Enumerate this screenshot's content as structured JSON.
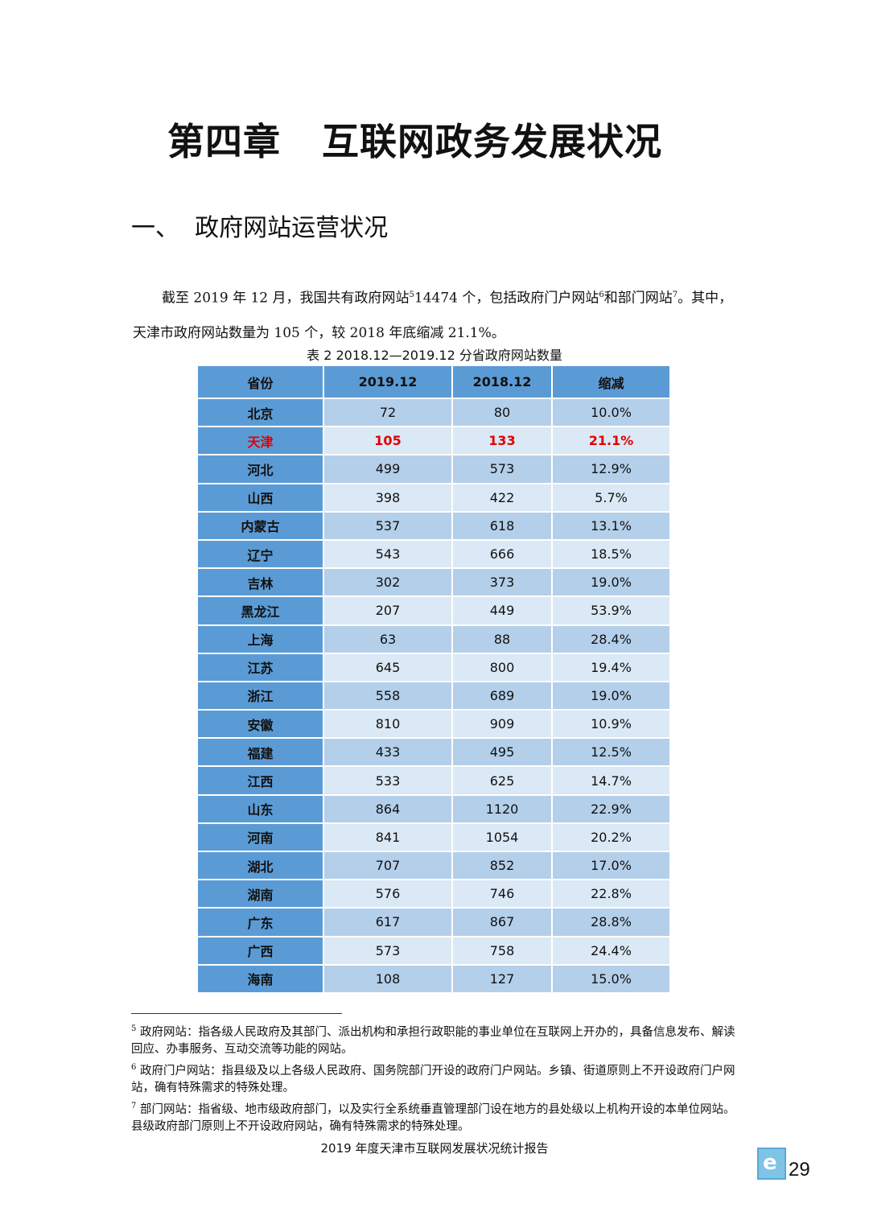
{
  "chapter_title": "第四章   互联网政务发展状况",
  "section_title": "一、  政府网站运营状况",
  "paragraph": {
    "p1": "截至 2019 年 12 月，我国共有政府网站",
    "fn5": "5",
    "p2": "14474 个，包括政府门户网站",
    "fn6": "6",
    "p3": "和部门网站",
    "fn7": "7",
    "p4": "。其中，天津市政府网站数量为 105 个，较 2018 年底缩减 21.1%。"
  },
  "table": {
    "caption": "表  2 2018.12—2019.12 分省政府网站数量",
    "headers": [
      "省份",
      "2019.12",
      "2018.12",
      "缩减"
    ],
    "highlight_color": "#e00000",
    "rows": [
      [
        "北京",
        "72",
        "80",
        "10.0%"
      ],
      [
        "天津",
        "105",
        "133",
        "21.1%"
      ],
      [
        "河北",
        "499",
        "573",
        "12.9%"
      ],
      [
        "山西",
        "398",
        "422",
        "5.7%"
      ],
      [
        "内蒙古",
        "537",
        "618",
        "13.1%"
      ],
      [
        "辽宁",
        "543",
        "666",
        "18.5%"
      ],
      [
        "吉林",
        "302",
        "373",
        "19.0%"
      ],
      [
        "黑龙江",
        "207",
        "449",
        "53.9%"
      ],
      [
        "上海",
        "63",
        "88",
        "28.4%"
      ],
      [
        "江苏",
        "645",
        "800",
        "19.4%"
      ],
      [
        "浙江",
        "558",
        "689",
        "19.0%"
      ],
      [
        "安徽",
        "810",
        "909",
        "10.9%"
      ],
      [
        "福建",
        "433",
        "495",
        "12.5%"
      ],
      [
        "江西",
        "533",
        "625",
        "14.7%"
      ],
      [
        "山东",
        "864",
        "1120",
        "22.9%"
      ],
      [
        "河南",
        "841",
        "1054",
        "20.2%"
      ],
      [
        "湖北",
        "707",
        "852",
        "17.0%"
      ],
      [
        "湖南",
        "576",
        "746",
        "22.8%"
      ],
      [
        "广东",
        "617",
        "867",
        "28.8%"
      ],
      [
        "广西",
        "573",
        "758",
        "24.4%"
      ],
      [
        "海南",
        "108",
        "127",
        "15.0%"
      ]
    ]
  },
  "footnotes": [
    {
      "num": "5",
      "text": "政府网站：指各级人民政府及其部门、派出机构和承担行政职能的事业单位在互联网上开办的，具备信息发布、解读回应、办事服务、互动交流等功能的网站。"
    },
    {
      "num": "6",
      "text": "政府门户网站：指县级及以上各级人民政府、国务院部门开设的政府门户网站。乡镇、街道原则上不开设政府门户网站，确有特殊需求的特殊处理。"
    },
    {
      "num": "7",
      "text": "部门网站：指省级、地市级政府部门，以及实行全系统垂直管理部门设在地方的县处级以上机构开设的本单位网站。县级政府部门原则上不开设政府网站，确有特殊需求的特殊处理。"
    }
  ],
  "footer": "2019 年度天津市互联网发展状况统计报告",
  "logo_letter": "e",
  "page_number": "29"
}
